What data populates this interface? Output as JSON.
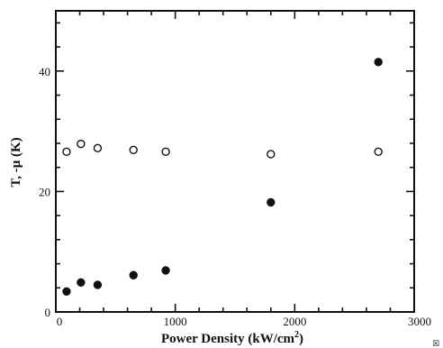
{
  "chart_data": {
    "type": "scatter",
    "title": "",
    "xlabel": "Power Density (kW/cm",
    "xlabel_superscript": "2",
    "xlabel_close": ")",
    "ylabel": "T, -μ (K)",
    "xlim": [
      0,
      3000
    ],
    "ylim": [
      0,
      50
    ],
    "xticks": [
      0,
      1000,
      2000,
      3000
    ],
    "yticks": [
      0,
      20,
      40
    ],
    "grid": false,
    "legend": "none",
    "series": [
      {
        "marker": "open-circle",
        "points": [
          {
            "x": 90,
            "y": 26.6
          },
          {
            "x": 210,
            "y": 27.9
          },
          {
            "x": 350,
            "y": 27.2
          },
          {
            "x": 650,
            "y": 26.9
          },
          {
            "x": 920,
            "y": 26.6
          },
          {
            "x": 1800,
            "y": 26.2
          },
          {
            "x": 2700,
            "y": 26.6
          }
        ]
      },
      {
        "marker": "filled-circle",
        "points": [
          {
            "x": 90,
            "y": 3.4
          },
          {
            "x": 210,
            "y": 4.9
          },
          {
            "x": 350,
            "y": 4.5
          },
          {
            "x": 650,
            "y": 6.1
          },
          {
            "x": 920,
            "y": 6.9
          },
          {
            "x": 1800,
            "y": 18.2
          },
          {
            "x": 2700,
            "y": 41.5
          }
        ]
      }
    ],
    "corner_mark": "☒"
  }
}
